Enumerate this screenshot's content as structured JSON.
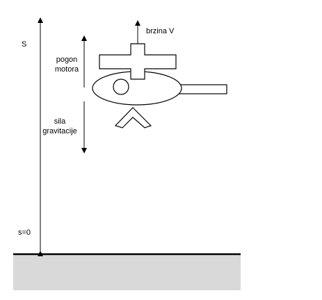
{
  "labels": {
    "height_axis": "S",
    "ground_level": "s=0",
    "velocity": "brzina V",
    "thrust_line1": "pogon",
    "thrust_line2": "motora",
    "gravity_line1": "sila",
    "gravity_line2": "gravitacije"
  },
  "colors": {
    "line": "#000000",
    "ground_fill": "#d9d9d9",
    "background": "#ffffff"
  }
}
